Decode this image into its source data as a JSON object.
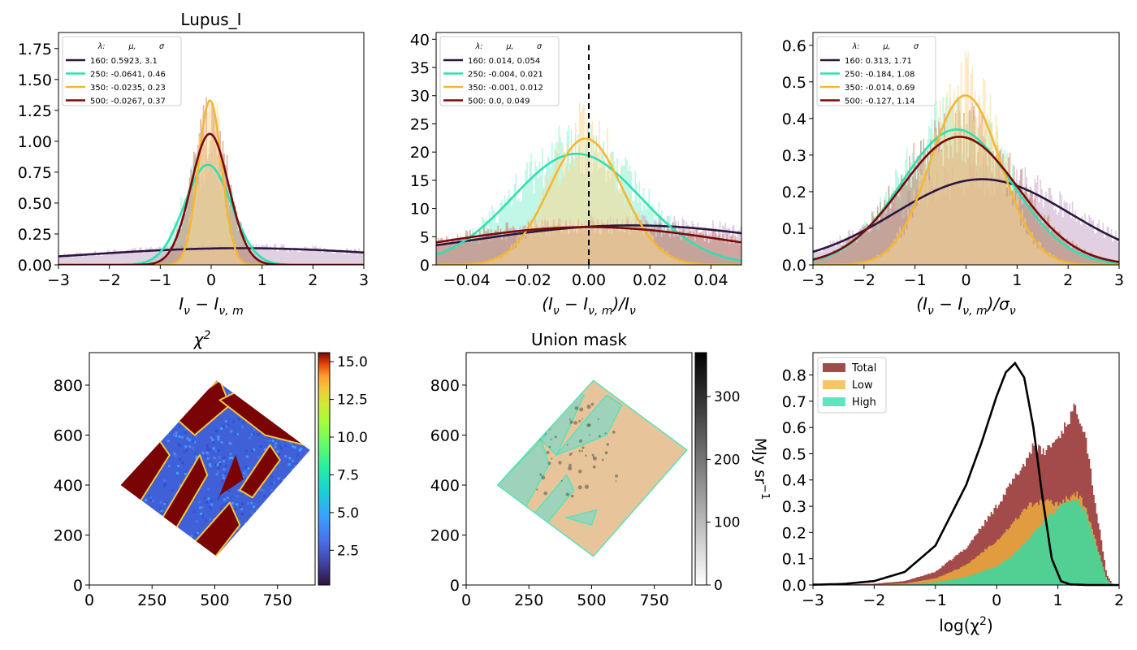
{
  "chart_data": [
    {
      "id": "p1",
      "type": "line",
      "title": "Lupus_I",
      "xlabel_main": "I",
      "xlabel_rest": " − I",
      "xlabel_sub1": "ν",
      "xlabel_sub2": "ν, m",
      "xlim": [
        -3,
        3
      ],
      "ylim": [
        0,
        1.88
      ],
      "xticks": [
        -3,
        -2,
        -1,
        0,
        1,
        2,
        3
      ],
      "xtick_labels": [
        "−3",
        "−2",
        "−1",
        "0",
        "1",
        "2",
        "3"
      ],
      "yticks": [
        0,
        0.25,
        0.5,
        0.75,
        1.0,
        1.25,
        1.5,
        1.75
      ],
      "ytick_labels": [
        "0.00",
        "0.25",
        "0.50",
        "0.75",
        "1.00",
        "1.25",
        "1.50",
        "1.75"
      ],
      "legend": {
        "header": [
          "λ:",
          "μ,",
          "σ"
        ],
        "position": "top-left",
        "entries": [
          {
            "label": "160: 0.5923,  3.1",
            "color": "#2d1640"
          },
          {
            "label": "250: -0.0641,  0.46",
            "color": "#2ee0b2"
          },
          {
            "label": "350: -0.0235,  0.23",
            "color": "#f5b731"
          },
          {
            "label": "500: -0.0267,  0.37",
            "color": "#7a0a0a"
          }
        ]
      },
      "series": [
        {
          "mu": 0.5923,
          "sigma": 3.1,
          "peak": 0.135,
          "color": "#2d1640"
        },
        {
          "mu": -0.0641,
          "sigma": 0.46,
          "peak": 0.81,
          "color": "#2ee0b2"
        },
        {
          "mu": -0.0235,
          "sigma": 0.23,
          "peak": 1.33,
          "color": "#f5b731"
        },
        {
          "mu": -0.0267,
          "sigma": 0.37,
          "peak": 1.06,
          "color": "#7a0a0a"
        }
      ]
    },
    {
      "id": "p2",
      "type": "line",
      "title": "",
      "xlabel_main": "(I",
      "xlabel_rest": " − I",
      "xlabel_sub1": "ν",
      "xlabel_sub2": "ν, m",
      "xlabel_tail": ")/I",
      "xlabel_sub3": "ν",
      "xlim": [
        -0.05,
        0.05
      ],
      "ylim": [
        0,
        41.2
      ],
      "xticks": [
        -0.04,
        -0.02,
        0,
        0.02,
        0.04
      ],
      "xtick_labels": [
        "−0.04",
        "−0.02",
        "0.00",
        "0.02",
        "0.04"
      ],
      "yticks": [
        0,
        5,
        10,
        15,
        20,
        25,
        30,
        35,
        40
      ],
      "ytick_labels": [
        "0",
        "5",
        "10",
        "15",
        "20",
        "25",
        "30",
        "35",
        "40"
      ],
      "vline": {
        "x": 0,
        "y_top": 39
      },
      "legend": {
        "header": [
          "λ:",
          "μ,",
          "σ"
        ],
        "position": "top-left",
        "entries": [
          {
            "label": "160: 0.014,  0.054",
            "color": "#2d1640"
          },
          {
            "label": "250: -0.004,  0.021",
            "color": "#2ee0b2"
          },
          {
            "label": "350: -0.001,  0.012",
            "color": "#f5b731"
          },
          {
            "label": "500: 0.0,  0.049",
            "color": "#7a0a0a"
          }
        ]
      },
      "series": [
        {
          "mu": 0.014,
          "sigma": 0.054,
          "peak": 7.0,
          "color": "#2d1640"
        },
        {
          "mu": -0.004,
          "sigma": 0.021,
          "peak": 19.7,
          "color": "#2ee0b2"
        },
        {
          "mu": -0.001,
          "sigma": 0.012,
          "peak": 22.4,
          "color": "#f5b731"
        },
        {
          "mu": 0.0,
          "sigma": 0.049,
          "peak": 6.7,
          "color": "#7a0a0a"
        }
      ]
    },
    {
      "id": "p3",
      "type": "line",
      "title": "",
      "xlabel_main": "(I",
      "xlabel_rest": " − I",
      "xlabel_sub1": "ν",
      "xlabel_sub2": "ν, m",
      "xlabel_tail": ")/σ",
      "xlabel_sub3": "ν",
      "xlim": [
        -3,
        3
      ],
      "ylim": [
        0,
        0.635
      ],
      "xticks": [
        -3,
        -2,
        -1,
        0,
        1,
        2,
        3
      ],
      "xtick_labels": [
        "−3",
        "−2",
        "−1",
        "0",
        "1",
        "2",
        "3"
      ],
      "yticks": [
        0,
        0.1,
        0.2,
        0.3,
        0.4,
        0.5,
        0.6
      ],
      "ytick_labels": [
        "0.0",
        "0.1",
        "0.2",
        "0.3",
        "0.4",
        "0.5",
        "0.6"
      ],
      "legend": {
        "header": [
          "λ:",
          "μ,",
          "σ"
        ],
        "position": "top-left",
        "entries": [
          {
            "label": "160: 0.313,  1.71",
            "color": "#2d1640"
          },
          {
            "label": "250: -0.184,  1.08",
            "color": "#2ee0b2"
          },
          {
            "label": "350: -0.014,  0.69",
            "color": "#f5b731"
          },
          {
            "label": "500: -0.127,  1.14",
            "color": "#7a0a0a"
          }
        ]
      },
      "series": [
        {
          "mu": 0.313,
          "sigma": 1.71,
          "peak": 0.234,
          "color": "#2d1640"
        },
        {
          "mu": -0.184,
          "sigma": 1.08,
          "peak": 0.37,
          "color": "#2ee0b2"
        },
        {
          "mu": -0.014,
          "sigma": 0.69,
          "peak": 0.463,
          "color": "#f5b731"
        },
        {
          "mu": -0.127,
          "sigma": 1.14,
          "peak": 0.35,
          "color": "#7a0a0a"
        }
      ]
    },
    {
      "id": "p4",
      "type": "heatmap",
      "title": "χ",
      "title_sup": "2",
      "xlim": [
        0,
        900
      ],
      "ylim": [
        0,
        930
      ],
      "xticks": [
        0,
        250,
        500,
        750
      ],
      "xtick_labels": [
        "0",
        "250",
        "500",
        "750"
      ],
      "yticks": [
        0,
        200,
        400,
        600,
        800
      ],
      "ytick_labels": [
        "0",
        "200",
        "400",
        "600",
        "800"
      ],
      "footprint": [
        [
          125,
          400
        ],
        [
          507,
          818
        ],
        [
          880,
          540
        ],
        [
          507,
          115
        ]
      ],
      "colorbar": {
        "colormap": "turbo",
        "range": [
          0.2,
          15.6
        ],
        "ticks": [
          2.5,
          5.0,
          7.5,
          10.0,
          12.5,
          15.0
        ],
        "tick_labels": [
          "2.5",
          "5.0",
          "7.5",
          "10.0",
          "12.5",
          "15.0"
        ]
      }
    },
    {
      "id": "p5",
      "type": "heatmap",
      "title": "Union mask",
      "xlim": [
        0,
        900
      ],
      "ylim": [
        0,
        930
      ],
      "xticks": [
        0,
        250,
        500,
        750
      ],
      "xtick_labels": [
        "0",
        "250",
        "500",
        "750"
      ],
      "yticks": [
        0,
        200,
        400,
        600,
        800
      ],
      "ytick_labels": [
        "0",
        "200",
        "400",
        "600",
        "800"
      ],
      "footprint": [
        [
          125,
          400
        ],
        [
          507,
          818
        ],
        [
          880,
          540
        ],
        [
          507,
          115
        ]
      ],
      "mask_colors": {
        "low": "#e8c49a",
        "high": "#9fd2bb",
        "edge": "#5ee0b6"
      },
      "colorbar": {
        "colormap": "gray_r",
        "range": [
          0,
          370
        ],
        "ticks": [
          0,
          100,
          200,
          300
        ],
        "tick_labels": [
          "0",
          "100",
          "200",
          "300"
        ],
        "label": "MJy sr",
        "label_sup": "−1"
      }
    },
    {
      "id": "p6",
      "type": "area",
      "title": "",
      "xlabel_main": "log(χ",
      "xlabel_sup": "2",
      "xlabel_tail": ")",
      "xlim": [
        -3,
        2
      ],
      "ylim": [
        0,
        0.885
      ],
      "xticks": [
        -3,
        -2,
        -1,
        0,
        1,
        2
      ],
      "xtick_labels": [
        "−3",
        "−2",
        "−1",
        "0",
        "1",
        "2"
      ],
      "yticks": [
        0,
        0.1,
        0.2,
        0.3,
        0.4,
        0.5,
        0.6,
        0.7,
        0.8
      ],
      "ytick_labels": [
        "0.0",
        "0.1",
        "0.2",
        "0.3",
        "0.4",
        "0.5",
        "0.6",
        "0.7",
        "0.8"
      ],
      "legend": {
        "position": "top-left",
        "entries": [
          {
            "label": "Total",
            "color": "#a34b4b"
          },
          {
            "label": "Low",
            "color": "#f6c56c"
          },
          {
            "label": "High",
            "color": "#5de6bd"
          }
        ]
      },
      "series": [
        {
          "name": "Total",
          "color": "#a34b4b",
          "x": [
            -3,
            -2.5,
            -2,
            -1.5,
            -1,
            -0.5,
            0,
            0.25,
            0.5,
            0.6,
            0.75,
            1.0,
            1.15,
            1.3,
            1.45,
            1.6,
            1.8,
            1.9
          ],
          "y": [
            0,
            0.002,
            0.005,
            0.015,
            0.05,
            0.14,
            0.3,
            0.39,
            0.48,
            0.54,
            0.5,
            0.56,
            0.62,
            0.68,
            0.58,
            0.33,
            0.04,
            0
          ]
        },
        {
          "name": "Low",
          "color": "#e09c3e",
          "x": [
            -3,
            -2,
            -1.5,
            -1,
            -0.5,
            0,
            0.25,
            0.5,
            0.75,
            1.0,
            1.15,
            1.3,
            1.45,
            1.6,
            1.8,
            1.9
          ],
          "y": [
            0,
            0.001,
            0.006,
            0.025,
            0.075,
            0.17,
            0.23,
            0.3,
            0.32,
            0.31,
            0.33,
            0.35,
            0.3,
            0.18,
            0.02,
            0
          ]
        },
        {
          "name": "High",
          "color": "#52cf92",
          "x": [
            -3,
            -1.5,
            -1,
            -0.5,
            0,
            0.25,
            0.5,
            0.75,
            1.0,
            1.15,
            1.3,
            1.45,
            1.6,
            1.8,
            1.9
          ],
          "y": [
            0,
            0.002,
            0.01,
            0.03,
            0.07,
            0.11,
            0.17,
            0.24,
            0.29,
            0.32,
            0.33,
            0.28,
            0.17,
            0.02,
            0
          ]
        },
        {
          "name": "curve",
          "color": "#000000",
          "type": "line",
          "x": [
            -3,
            -2.5,
            -2,
            -1.5,
            -1,
            -0.5,
            -0.25,
            0,
            0.15,
            0.3,
            0.45,
            0.6,
            0.75,
            0.9,
            1.05,
            1.2,
            1.5,
            2.0
          ],
          "y": [
            0.001,
            0.004,
            0.015,
            0.05,
            0.15,
            0.38,
            0.54,
            0.72,
            0.81,
            0.845,
            0.79,
            0.6,
            0.33,
            0.1,
            0.015,
            0.002,
            0,
            0
          ]
        }
      ]
    }
  ]
}
